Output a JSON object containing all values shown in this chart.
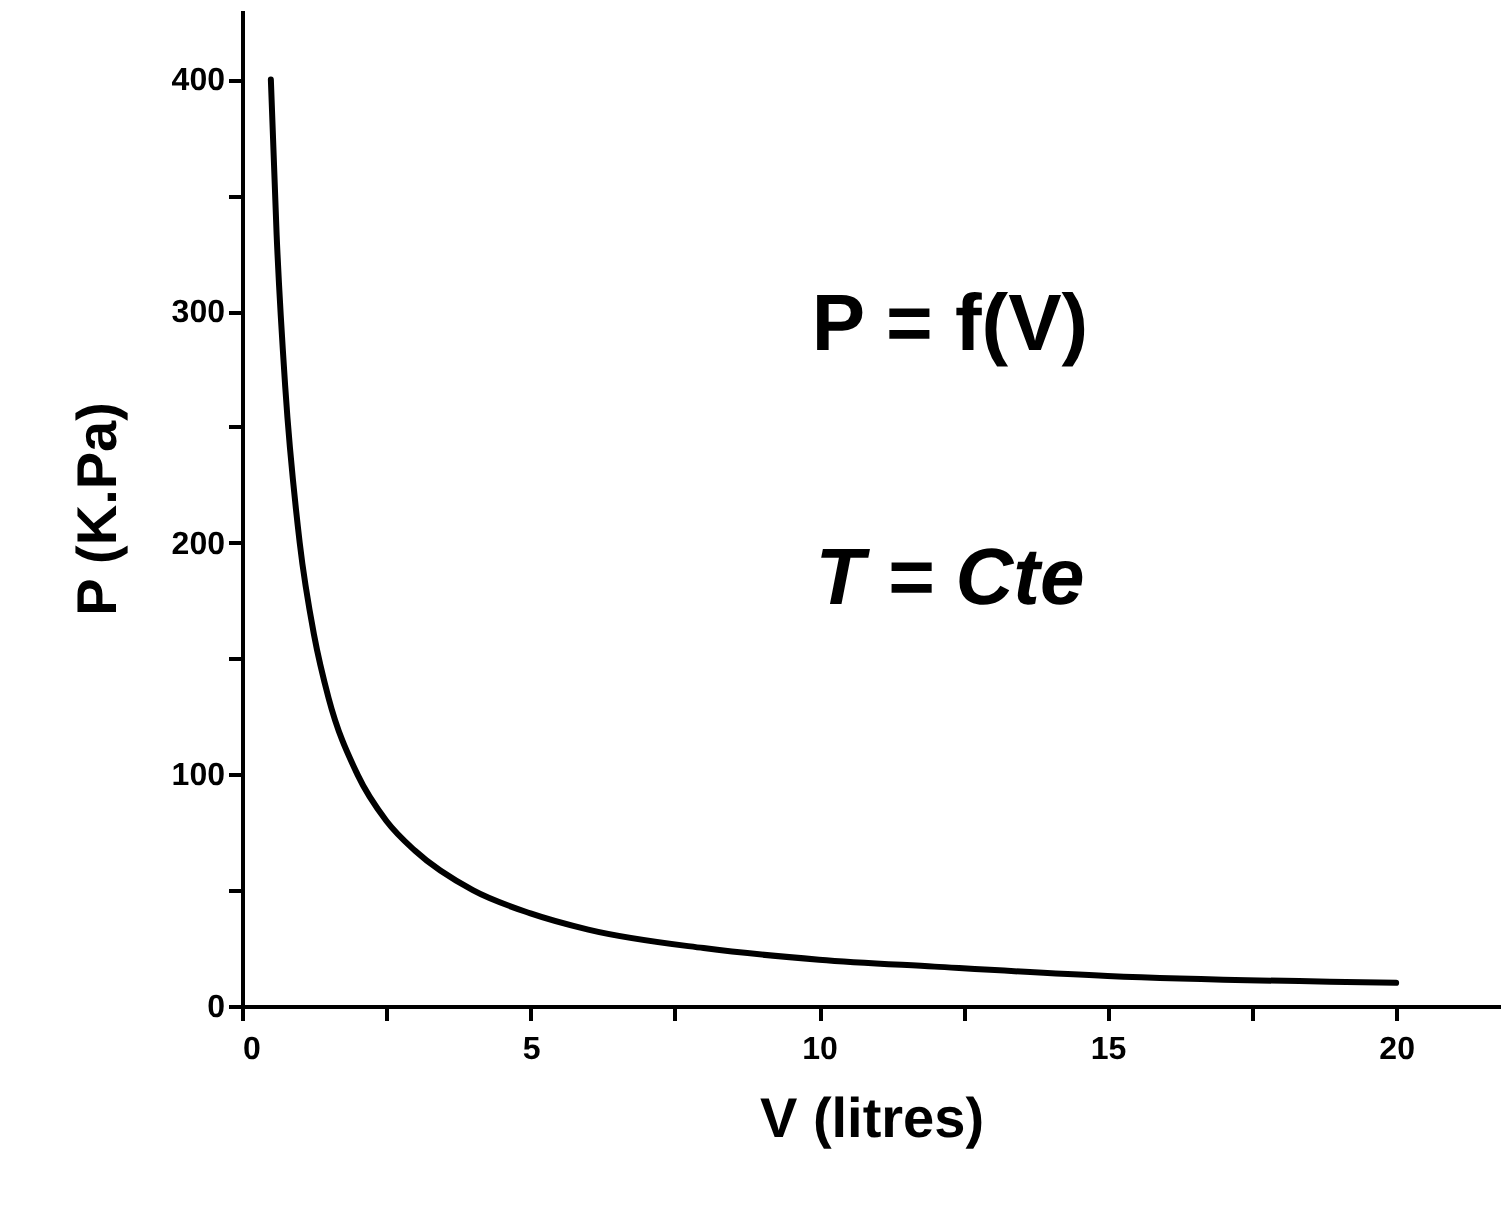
{
  "chart_data": {
    "type": "line",
    "xlabel": "V (litres)",
    "ylabel": "P (K.Pa)",
    "annotations": [
      "P = f(V)",
      "T = Cte"
    ],
    "x": [
      0.5,
      0.6,
      0.75,
      1,
      1.25,
      1.5,
      2,
      2.5,
      3,
      4,
      5,
      6,
      8,
      10,
      12,
      15,
      20
    ],
    "series": [
      {
        "color": "#000000",
        "values": [
          400,
          333,
          267,
          200,
          160,
          133,
          100,
          80,
          67,
          50,
          40,
          33,
          25,
          20,
          17,
          13,
          10
        ]
      }
    ],
    "xlim": [
      0,
      21.8
    ],
    "ylim": [
      0,
      430
    ],
    "xticks": [
      0,
      {
        "value": 2.5,
        "label": null
      },
      5,
      {
        "value": 7.5,
        "label": null
      },
      10,
      {
        "value": 12.5,
        "label": null
      },
      15,
      {
        "value": 17.5,
        "label": null
      },
      20
    ],
    "yticks": [
      0,
      {
        "value": 50,
        "label": null
      },
      100,
      {
        "value": 150,
        "label": null
      },
      200,
      {
        "value": 250,
        "label": null
      },
      300,
      {
        "value": 350,
        "label": null
      },
      400
    ],
    "grid": false,
    "marker": "none",
    "line_style": "solid"
  }
}
